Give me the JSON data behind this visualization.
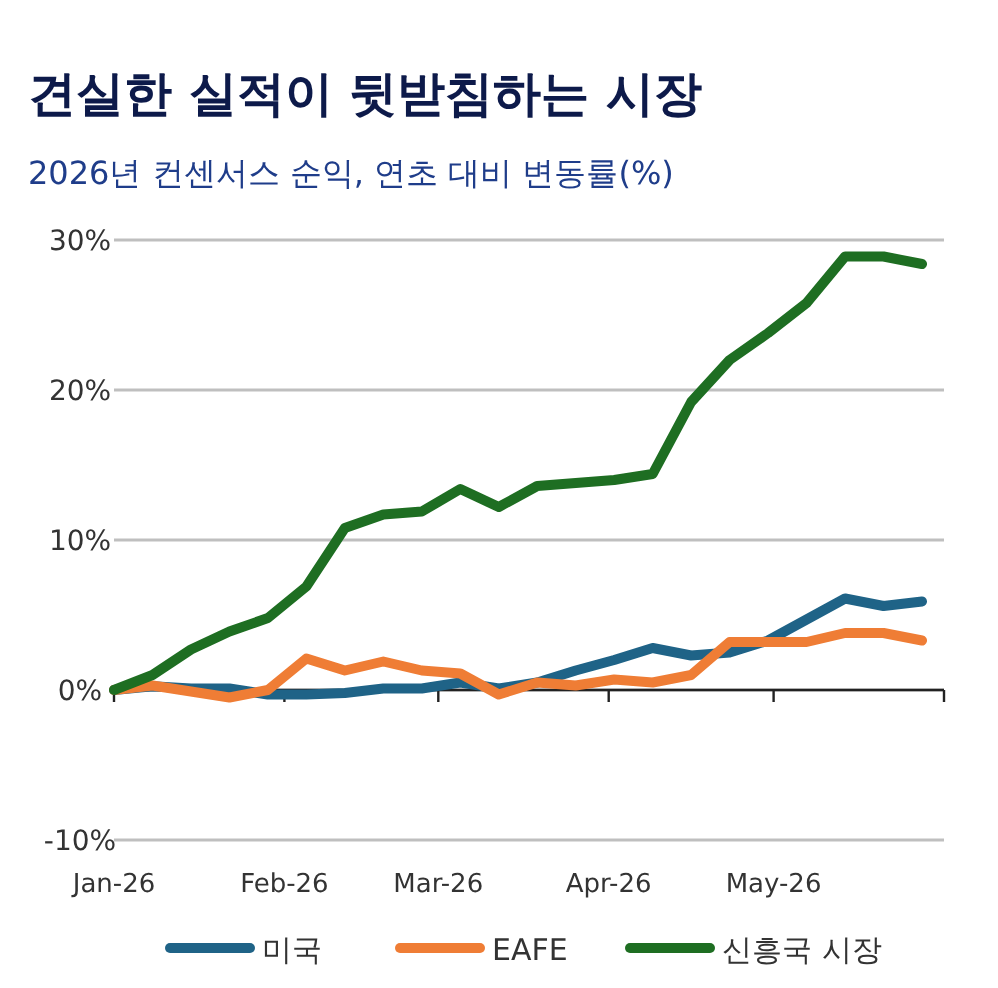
{
  "chart_data": {
    "type": "line",
    "title": "견실한 실적이 뒷받침하는 시장",
    "subtitle": "2026년 컨센서스 순익, 연초 대비 변동률(%)",
    "x": [
      "2026-01-01",
      "2026-01-08",
      "2026-01-15",
      "2026-01-22",
      "2026-01-29",
      "2026-02-05",
      "2026-02-12",
      "2026-02-19",
      "2026-02-26",
      "2026-03-05",
      "2026-03-12",
      "2026-03-19",
      "2026-03-26",
      "2026-04-02",
      "2026-04-09",
      "2026-04-16",
      "2026-04-23",
      "2026-04-30",
      "2026-05-07",
      "2026-05-14",
      "2026-05-21",
      "2026-05-28"
    ],
    "series": [
      {
        "name": "미국",
        "color": "#1f6387",
        "values": [
          0,
          0.25,
          0.1,
          0.1,
          -0.3,
          -0.3,
          -0.2,
          0.1,
          0.1,
          0.5,
          0.1,
          0.5,
          1.3,
          2.0,
          2.8,
          2.3,
          2.5,
          3.3,
          4.7,
          6.1,
          5.6,
          5.9
        ]
      },
      {
        "name": "EAFE",
        "color": "#ef7d35",
        "values": [
          0,
          0.3,
          -0.1,
          -0.5,
          0.0,
          2.1,
          1.3,
          1.9,
          1.3,
          1.1,
          -0.3,
          0.5,
          0.3,
          0.7,
          0.5,
          1.0,
          3.2,
          3.2,
          3.2,
          3.8,
          3.8,
          3.3
        ]
      },
      {
        "name": "신흥국 시장",
        "color": "#1e6e22",
        "values": [
          0,
          1.0,
          2.7,
          3.9,
          4.8,
          6.9,
          10.8,
          11.7,
          11.9,
          13.4,
          12.2,
          13.6,
          13.8,
          14.0,
          14.4,
          19.2,
          22.0,
          23.8,
          25.8,
          28.9,
          28.9,
          28.4
        ]
      }
    ],
    "xlim": [
      "2026-01-01",
      "2026-06-01"
    ],
    "xticks": [
      {
        "value": "2026-01-01",
        "label": "Jan-26"
      },
      {
        "value": "2026-02-01",
        "label": "Feb-26"
      },
      {
        "value": "2026-03-01",
        "label": "Mar-26"
      },
      {
        "value": "2026-04-01",
        "label": "Apr-26"
      },
      {
        "value": "2026-05-01",
        "label": "May-26"
      },
      {
        "value": "2026-06-01",
        "label": null
      }
    ],
    "ylim": [
      -10,
      30
    ],
    "yticks": [
      {
        "value": -10,
        "label": "-10%"
      },
      {
        "value": 0,
        "label": "0%"
      },
      {
        "value": 10,
        "label": "10%"
      },
      {
        "value": 20,
        "label": "20%"
      },
      {
        "value": 30,
        "label": "30%"
      }
    ],
    "grid": "y",
    "legend": "bottom",
    "marker": "none",
    "line_style": "solid"
  }
}
